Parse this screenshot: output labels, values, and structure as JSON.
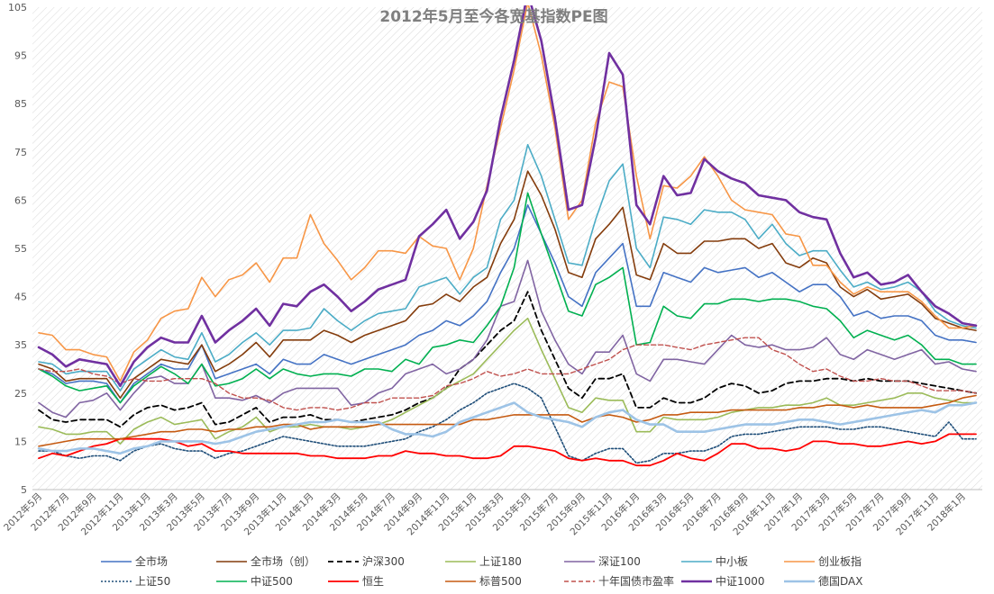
{
  "chart_data": {
    "type": "line",
    "title": "2012年5月至今各宽基指数PE图",
    "xlabel": "",
    "ylabel": "",
    "ylim": [
      5,
      105
    ],
    "yticks": [
      5,
      15,
      25,
      35,
      45,
      55,
      65,
      75,
      85,
      95,
      105
    ],
    "grid": "diagonal-hatch",
    "legend_position": "bottom",
    "x": [
      "2012年5月",
      "2012年6月",
      "2012年7月",
      "2012年8月",
      "2012年9月",
      "2012年10月",
      "2012年11月",
      "2012年12月",
      "2013年1月",
      "2013年2月",
      "2013年3月",
      "2013年4月",
      "2013年5月",
      "2013年6月",
      "2013年7月",
      "2013年8月",
      "2013年9月",
      "2013年10月",
      "2013年11月",
      "2013年12月",
      "2014年1月",
      "2014年2月",
      "2014年3月",
      "2014年4月",
      "2014年5月",
      "2014年6月",
      "2014年7月",
      "2014年8月",
      "2014年9月",
      "2014年10月",
      "2014年11月",
      "2014年12月",
      "2015年1月",
      "2015年2月",
      "2015年3月",
      "2015年4月",
      "2015年5月",
      "2015年6月",
      "2015年7月",
      "2015年8月",
      "2015年9月",
      "2015年10月",
      "2015年11月",
      "2015年12月",
      "2016年1月",
      "2016年2月",
      "2016年3月",
      "2016年4月",
      "2016年5月",
      "2016年6月",
      "2016年7月",
      "2016年8月",
      "2016年9月",
      "2016年10月",
      "2016年11月",
      "2016年12月",
      "2017年1月",
      "2017年2月",
      "2017年3月",
      "2017年4月",
      "2017年5月",
      "2017年6月",
      "2017年7月",
      "2017年8月",
      "2017年9月",
      "2017年10月",
      "2017年11月",
      "2017年12月",
      "2018年1月",
      "2018年2月"
    ],
    "xtick_labels": [
      "2012年5月",
      "2012年7月",
      "2012年9月",
      "2012年11月",
      "2013年1月",
      "2013年3月",
      "2013年5月",
      "2013年7月",
      "2013年9月",
      "2013年11月",
      "2014年1月",
      "2014年3月",
      "2014年5月",
      "2014年7月",
      "2014年9月",
      "2014年11月",
      "2015年1月",
      "2015年3月",
      "2015年5月",
      "2015年7月",
      "2015年9月",
      "2015年11月",
      "2016年1月",
      "2016年3月",
      "2016年5月",
      "2016年7月",
      "2016年9月",
      "2016年11月",
      "2017年1月",
      "2017年3月",
      "2017年5月",
      "2017年7月",
      "2017年9月",
      "2017年11月",
      "2018年1月"
    ],
    "series": [
      {
        "name": "全市场",
        "color": "#4472c4",
        "dash": "solid",
        "width": 1.6,
        "values": [
          30,
          29,
          27,
          27.5,
          27.5,
          27,
          23,
          27,
          29,
          31,
          30,
          30,
          35,
          28,
          29,
          30,
          31,
          29,
          32,
          31,
          31,
          33,
          32,
          31,
          32,
          33,
          34,
          35,
          37,
          38,
          40,
          39,
          41,
          44,
          50,
          55,
          64,
          58,
          52,
          45,
          43,
          50,
          53,
          56,
          43,
          43,
          50,
          49,
          48,
          51,
          50,
          50.5,
          51,
          49,
          50,
          48,
          46,
          47.5,
          47.5,
          45,
          41,
          42,
          40.5,
          41,
          41,
          40,
          37,
          36,
          36,
          35.5
        ]
      },
      {
        "name": "全市场（创）",
        "color": "#843c0c",
        "dash": "solid",
        "width": 1.6,
        "values": [
          31,
          30,
          27.5,
          28,
          28,
          28,
          24,
          28,
          30,
          32,
          31.5,
          31,
          35,
          29.5,
          31,
          33,
          35.5,
          32.5,
          36,
          36,
          36,
          38,
          37,
          35.5,
          37,
          38,
          39,
          40,
          43,
          43.5,
          45.5,
          44,
          47,
          49,
          56,
          61,
          71,
          66,
          59,
          50,
          49,
          57,
          60,
          63.5,
          49.5,
          48.5,
          56,
          54,
          54,
          56.5,
          56.5,
          57,
          57,
          55,
          56,
          52,
          51,
          53,
          52,
          47,
          45,
          46.5,
          44.5,
          45,
          45.5,
          43.5,
          40.5,
          39.5,
          38.5,
          38
        ]
      },
      {
        "name": "沪深300",
        "color": "#000000",
        "dash": "6,4",
        "width": 1.8,
        "values": [
          21.5,
          19.5,
          19,
          19.5,
          19.5,
          19.5,
          18,
          20.5,
          22,
          22.5,
          21.5,
          22,
          23,
          18.5,
          19,
          20.5,
          22,
          19,
          20,
          20,
          20.5,
          19.5,
          19.5,
          19,
          19.5,
          20,
          20.5,
          21.5,
          23,
          24,
          26,
          30,
          32,
          35,
          38,
          40,
          46,
          38,
          32,
          26,
          24,
          28,
          28,
          29,
          22,
          22,
          24,
          23,
          23,
          24,
          26,
          27,
          26.5,
          25,
          25.5,
          27,
          27.5,
          27.5,
          28,
          28,
          27.5,
          28,
          27.5,
          27.5,
          27.5,
          27,
          26.5,
          26,
          25.5,
          25
        ]
      },
      {
        "name": "上证180",
        "color": "#9bbb59",
        "dash": "solid",
        "width": 1.6,
        "values": [
          18,
          17.5,
          16.5,
          16.5,
          17,
          17,
          14.5,
          17.5,
          19,
          20,
          18.5,
          19,
          19.5,
          15.5,
          17,
          18,
          20,
          17,
          18,
          18,
          18.5,
          18,
          18,
          17.5,
          18,
          18.5,
          19.5,
          21,
          22.5,
          24,
          26,
          27.5,
          29,
          32,
          35,
          38,
          40.5,
          34,
          28,
          22,
          21,
          24,
          23.5,
          23.5,
          17,
          17,
          20,
          19.5,
          19.5,
          19.5,
          20,
          21,
          21.5,
          22,
          22,
          22.5,
          22.5,
          23,
          24,
          22.5,
          22.5,
          23,
          23.5,
          24,
          25,
          25,
          24,
          23.5,
          23,
          23
        ]
      },
      {
        "name": "深证100",
        "color": "#8064a2",
        "dash": "solid",
        "width": 1.6,
        "values": [
          23,
          21,
          20,
          23,
          23.5,
          25,
          21.5,
          25,
          28,
          28.5,
          27,
          27,
          31,
          24,
          24,
          23.5,
          24.5,
          23,
          25,
          26,
          26,
          26,
          26,
          22.5,
          23,
          25,
          26,
          29,
          30,
          31,
          29,
          30,
          32,
          36,
          43,
          44,
          52.5,
          42,
          36,
          31,
          29,
          33.5,
          33.5,
          37,
          29,
          27.5,
          32,
          32,
          31.5,
          31,
          34,
          37,
          35,
          34.5,
          35,
          34,
          34,
          34.5,
          36.5,
          33,
          32,
          34,
          33,
          32,
          33,
          34,
          31,
          31.5,
          30,
          29.5
        ]
      },
      {
        "name": "中小板",
        "color": "#4bacc6",
        "dash": "solid",
        "width": 1.6,
        "values": [
          31.5,
          31,
          29,
          29.5,
          29.5,
          29.5,
          25.5,
          30,
          32,
          34,
          32.5,
          32,
          37.5,
          31.5,
          33,
          35.5,
          37.5,
          35,
          38,
          38,
          38.5,
          42.5,
          40,
          38,
          40,
          41.5,
          42,
          42.5,
          47,
          48,
          49,
          45.5,
          49,
          51,
          61,
          65,
          76.5,
          70,
          61,
          52,
          51.5,
          61,
          69,
          72.5,
          55,
          51,
          61.5,
          61,
          60,
          63,
          62.5,
          62.5,
          61,
          57,
          60,
          56,
          53.5,
          54.5,
          54.5,
          50.5,
          47,
          48,
          46.5,
          47,
          48,
          46,
          42,
          40,
          39,
          38.5
        ]
      },
      {
        "name": "创业板指",
        "color": "#f79646",
        "dash": "solid",
        "width": 1.6,
        "values": [
          37.5,
          37,
          34,
          34,
          33,
          32.5,
          27.5,
          33.5,
          36,
          40.5,
          42,
          42.5,
          49,
          45,
          48.5,
          49.5,
          52,
          48,
          53,
          53,
          62,
          56,
          52.5,
          48.5,
          51,
          54.5,
          54.5,
          54,
          57.5,
          55.5,
          55,
          48.5,
          55,
          68,
          80,
          92,
          106,
          95,
          80,
          61,
          65,
          81,
          89.5,
          88.5,
          70,
          57,
          68,
          67.5,
          70,
          74,
          70,
          65,
          63,
          62.5,
          62,
          58,
          57.5,
          51.5,
          51.5,
          48,
          45.5,
          47,
          46,
          46,
          46,
          44,
          41,
          38.5,
          38.5,
          39
        ]
      },
      {
        "name": "上证50",
        "color": "#1f4e79",
        "dash": "2,2",
        "width": 1.6,
        "values": [
          13,
          13,
          12,
          11.5,
          12,
          12,
          11,
          13,
          14,
          14.5,
          13.5,
          13,
          13,
          11.5,
          12.5,
          13,
          14,
          15,
          16,
          15.5,
          15,
          14.5,
          14,
          14,
          14,
          14.5,
          15,
          15.5,
          17,
          18,
          19.5,
          21.5,
          23,
          25,
          26,
          27,
          26,
          24,
          18,
          12,
          11,
          12.5,
          13.5,
          13.5,
          10.5,
          11,
          12.5,
          12.5,
          13,
          13,
          14,
          16,
          16.5,
          16.5,
          17,
          17.5,
          18,
          18,
          18,
          17.5,
          17.5,
          18,
          18,
          17.5,
          17,
          16.5,
          16,
          19,
          15.5,
          15.5
        ]
      },
      {
        "name": "中证500",
        "color": "#00b050",
        "dash": "solid",
        "width": 1.6,
        "values": [
          30,
          28.5,
          26.5,
          25.5,
          26,
          26.5,
          23,
          26.5,
          28.5,
          30.5,
          29,
          27,
          31,
          26.5,
          27,
          28,
          30,
          28,
          30,
          29,
          28.5,
          29,
          29,
          28.5,
          30,
          30,
          29.5,
          32,
          31,
          34.5,
          35,
          36,
          35.5,
          39,
          43,
          51,
          66.5,
          58,
          50,
          42,
          41,
          47.5,
          49,
          51,
          35,
          35.5,
          43,
          41,
          40.5,
          43.5,
          43.5,
          44.5,
          44.5,
          44,
          44.5,
          44.5,
          44,
          43,
          42.5,
          40,
          36.5,
          38,
          37,
          36,
          37,
          35,
          32,
          32,
          31,
          31
        ]
      },
      {
        "name": "恒生",
        "color": "#ff0000",
        "dash": "solid",
        "width": 1.8,
        "values": [
          11.5,
          12.5,
          12,
          13,
          14,
          14.5,
          15.5,
          15.5,
          15.5,
          15.5,
          15,
          14,
          14.5,
          13,
          13,
          12.5,
          12.5,
          12.5,
          12.5,
          12.5,
          12,
          12,
          11.5,
          11.5,
          11.5,
          12,
          12,
          13,
          12.5,
          12.5,
          12,
          12,
          11.5,
          11.5,
          12,
          14,
          14,
          13.5,
          13,
          11.5,
          11,
          11.5,
          11,
          11,
          10,
          10,
          11,
          12.5,
          11.5,
          11,
          12.5,
          14.5,
          14.5,
          13.5,
          13.5,
          13,
          13.5,
          15,
          15,
          14.5,
          14.5,
          14,
          14,
          14.5,
          15,
          14.5,
          15,
          16.5,
          16.5,
          16.5
        ]
      },
      {
        "name": "标普500",
        "color": "#c55a11",
        "dash": "solid",
        "width": 1.6,
        "values": [
          14,
          14.5,
          15,
          15.5,
          15.5,
          15.5,
          15.5,
          16,
          16.5,
          17,
          17,
          17.5,
          17.5,
          17,
          17.5,
          17.5,
          18,
          18,
          18.5,
          18.5,
          17.5,
          18,
          18,
          18,
          18,
          18.5,
          18.5,
          18.5,
          18.5,
          18.5,
          18.5,
          18.5,
          19.5,
          19.5,
          20,
          20.5,
          20.5,
          20.5,
          20.5,
          20.5,
          19,
          20,
          20.5,
          20,
          19,
          19.5,
          20.5,
          20.5,
          21,
          21,
          21,
          21.5,
          21.5,
          21.5,
          21.5,
          21.5,
          22,
          22,
          22.5,
          22.5,
          22,
          22.5,
          22,
          22,
          22,
          22,
          22.5,
          23,
          24,
          24.5
        ]
      },
      {
        "name": "十年国债市盈率",
        "color": "#c0504d",
        "dash": "5,3",
        "width": 1.4,
        "values": [
          30,
          29.5,
          29.5,
          30,
          29,
          28.5,
          27,
          28,
          27.5,
          27.5,
          28,
          28,
          28,
          27,
          25,
          24,
          24,
          23.5,
          22,
          21.5,
          22,
          22,
          21.5,
          22,
          23,
          23,
          24,
          24,
          24,
          24.5,
          26.5,
          27,
          28,
          29.5,
          28.5,
          29,
          30,
          29,
          29,
          29,
          30,
          31,
          32,
          34,
          35,
          35,
          35,
          34.5,
          34,
          35,
          35.5,
          36,
          36.5,
          36.5,
          34,
          33,
          31,
          29.5,
          30,
          28.5,
          27.5,
          27.5,
          28,
          27.5,
          27.5,
          26.5,
          25.5,
          25.5,
          25.5,
          25
        ]
      },
      {
        "name": "中证1000",
        "color": "#7030a0",
        "dash": "solid",
        "width": 2.6,
        "values": [
          34.5,
          33,
          30.5,
          32,
          31.5,
          31,
          26.5,
          31.5,
          34.5,
          36.5,
          35.5,
          35.5,
          41,
          35.5,
          38,
          40,
          42.5,
          39,
          43.5,
          43,
          46,
          47.5,
          45,
          42,
          44,
          46.5,
          47.5,
          48.5,
          57.5,
          60,
          63,
          57,
          60.5,
          67,
          82,
          94,
          110,
          98,
          82,
          63,
          64,
          78,
          95.5,
          91,
          64,
          60,
          70,
          66,
          66.5,
          73.5,
          71,
          69.5,
          68.5,
          66,
          65.5,
          65,
          62.5,
          61.5,
          61,
          54,
          49,
          50,
          47.5,
          48,
          49.5,
          46,
          43,
          41.5,
          39.5,
          39
        ]
      },
      {
        "name": "德国DAX",
        "color": "#9dc3e6",
        "dash": "solid",
        "width": 2.6,
        "values": [
          13.5,
          13,
          13,
          13.5,
          13.5,
          13,
          12.5,
          13.5,
          14,
          15,
          15,
          15,
          15,
          14.5,
          15,
          16,
          17,
          17.5,
          18,
          18.5,
          19,
          19,
          19.5,
          19,
          19,
          19,
          17.5,
          16.5,
          16.5,
          16,
          17,
          19,
          20,
          21,
          22,
          23,
          21,
          20,
          19.5,
          19,
          18,
          20,
          21,
          21.5,
          19.5,
          18.5,
          18.5,
          17,
          17,
          17,
          17.5,
          18,
          18.5,
          18.5,
          18.5,
          19,
          19.5,
          19.5,
          19,
          18.5,
          19,
          19.5,
          20,
          20.5,
          21,
          21.5,
          21,
          22.5,
          22.5,
          23
        ]
      }
    ]
  }
}
